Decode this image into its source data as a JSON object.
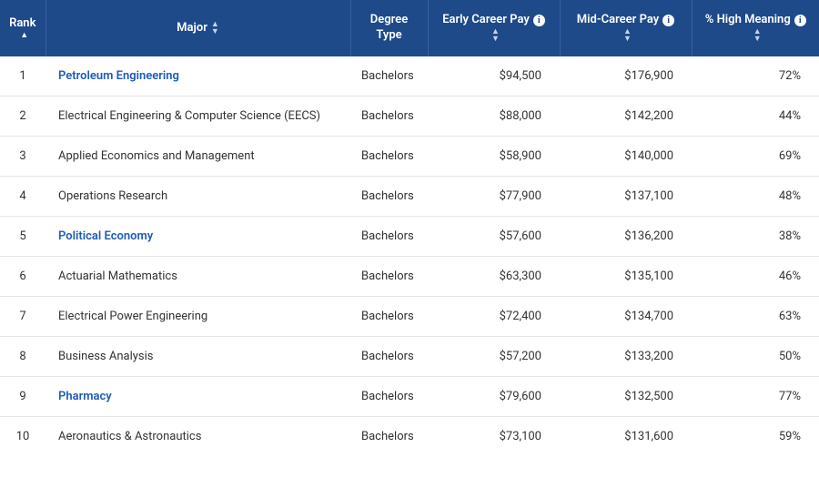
{
  "table": {
    "header_bg": "#1e4a8a",
    "header_fg": "#ffffff",
    "row_border": "#e5e5e5",
    "link_color": "#1e5bb8",
    "columns": {
      "rank": "Rank",
      "major": "Major",
      "degree": "Degree Type",
      "early": "Early Career Pay",
      "mid": "Mid-Career Pay",
      "meaning": "% High Meaning"
    },
    "rows": [
      {
        "rank": "1",
        "major": "Petroleum Engineering",
        "major_link": true,
        "degree": "Bachelors",
        "early": "$94,500",
        "mid": "$176,900",
        "meaning": "72%"
      },
      {
        "rank": "2",
        "major": "Electrical Engineering & Computer Science (EECS)",
        "major_link": false,
        "degree": "Bachelors",
        "early": "$88,000",
        "mid": "$142,200",
        "meaning": "44%"
      },
      {
        "rank": "3",
        "major": "Applied Economics and Management",
        "major_link": false,
        "degree": "Bachelors",
        "early": "$58,900",
        "mid": "$140,000",
        "meaning": "69%"
      },
      {
        "rank": "4",
        "major": "Operations Research",
        "major_link": false,
        "degree": "Bachelors",
        "early": "$77,900",
        "mid": "$137,100",
        "meaning": "48%"
      },
      {
        "rank": "5",
        "major": "Political Economy",
        "major_link": true,
        "degree": "Bachelors",
        "early": "$57,600",
        "mid": "$136,200",
        "meaning": "38%"
      },
      {
        "rank": "6",
        "major": "Actuarial Mathematics",
        "major_link": false,
        "degree": "Bachelors",
        "early": "$63,300",
        "mid": "$135,100",
        "meaning": "46%"
      },
      {
        "rank": "7",
        "major": "Electrical Power Engineering",
        "major_link": false,
        "degree": "Bachelors",
        "early": "$72,400",
        "mid": "$134,700",
        "meaning": "63%"
      },
      {
        "rank": "8",
        "major": "Business Analysis",
        "major_link": false,
        "degree": "Bachelors",
        "early": "$57,200",
        "mid": "$133,200",
        "meaning": "50%"
      },
      {
        "rank": "9",
        "major": "Pharmacy",
        "major_link": true,
        "degree": "Bachelors",
        "early": "$79,600",
        "mid": "$132,500",
        "meaning": "77%"
      },
      {
        "rank": "10",
        "major": "Aeronautics & Astronautics",
        "major_link": false,
        "degree": "Bachelors",
        "early": "$73,100",
        "mid": "$131,600",
        "meaning": "59%"
      }
    ]
  }
}
